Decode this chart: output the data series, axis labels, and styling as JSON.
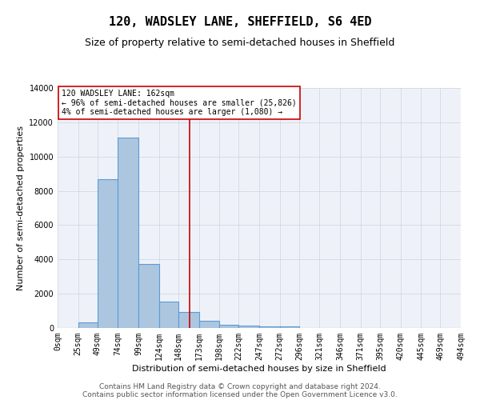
{
  "title": "120, WADSLEY LANE, SHEFFIELD, S6 4ED",
  "subtitle": "Size of property relative to semi-detached houses in Sheffield",
  "xlabel": "Distribution of semi-detached houses by size in Sheffield",
  "ylabel": "Number of semi-detached properties",
  "footer_line1": "Contains HM Land Registry data © Crown copyright and database right 2024.",
  "footer_line2": "Contains public sector information licensed under the Open Government Licence v3.0.",
  "bar_edges": [
    0,
    25,
    49,
    74,
    99,
    124,
    148,
    173,
    198,
    222,
    247,
    272,
    296,
    321,
    346,
    371,
    395,
    420,
    445,
    469,
    494
  ],
  "bar_heights": [
    0,
    350,
    8700,
    11100,
    3750,
    1550,
    950,
    400,
    200,
    150,
    100,
    100,
    0,
    0,
    0,
    0,
    0,
    0,
    0,
    0
  ],
  "bar_color": "#adc6e0",
  "bar_edge_color": "#5b9bd5",
  "bar_lw": 0.8,
  "vline_x": 162,
  "vline_color": "#cc0000",
  "vline_lw": 1.2,
  "annotation_title": "120 WADSLEY LANE: 162sqm",
  "annotation_line1": "← 96% of semi-detached houses are smaller (25,826)",
  "annotation_line2": "4% of semi-detached houses are larger (1,080) →",
  "annotation_box_color": "#ffffff",
  "annotation_box_edge": "#cc0000",
  "ylim": [
    0,
    14000
  ],
  "yticks": [
    0,
    2000,
    4000,
    6000,
    8000,
    10000,
    12000,
    14000
  ],
  "xlim": [
    0,
    494
  ],
  "grid_color": "#d0d8e8",
  "bg_color": "#eef2f8",
  "title_fontsize": 11,
  "subtitle_fontsize": 9,
  "axis_label_fontsize": 8,
  "tick_fontsize": 7,
  "footer_fontsize": 6.5,
  "annotation_fontsize": 7
}
